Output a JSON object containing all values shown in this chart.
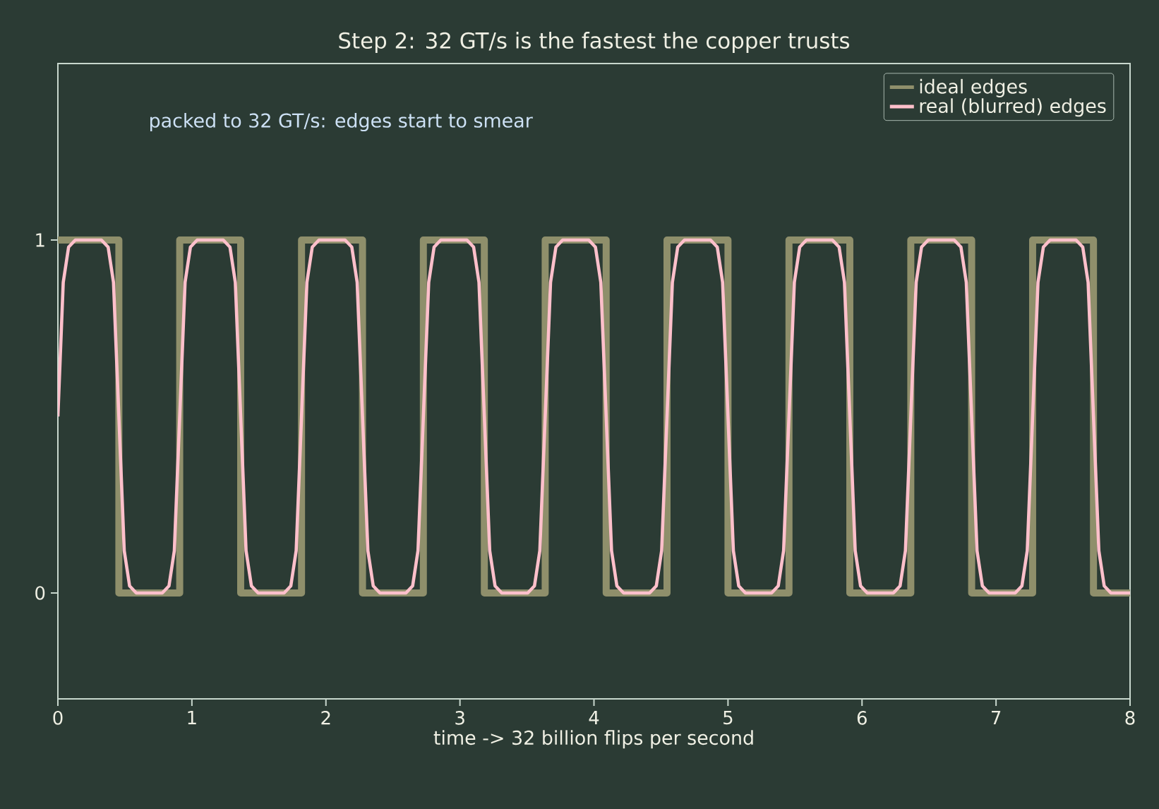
{
  "chart_data": {
    "type": "line",
    "title": "Step 2: 32 GT/s is the fastest the copper trusts",
    "xlabel": "time  ->  32 billion flips per second",
    "annotations": [
      "packed to 32 GT/s: edges start to smear"
    ],
    "xlim": [
      0,
      8
    ],
    "ylim": [
      -0.3,
      1.5
    ],
    "xticks": [
      0,
      1,
      2,
      3,
      4,
      5,
      6,
      7,
      8
    ],
    "yticks": [
      0,
      1
    ],
    "grid": false,
    "legend": "top right",
    "series": [
      {
        "name": "ideal edges",
        "type": "step",
        "color": "#8f8f6b",
        "x": [
          0,
          0.455,
          0.909,
          1.364,
          1.818,
          2.273,
          2.727,
          3.182,
          3.636,
          4.091,
          4.545,
          5.0,
          5.455,
          5.909,
          6.364,
          6.818,
          7.273,
          7.727,
          8
        ],
        "values": [
          1,
          0,
          1,
          0,
          1,
          0,
          1,
          0,
          1,
          0,
          1,
          0,
          1,
          0,
          1,
          0,
          1,
          0,
          0
        ]
      },
      {
        "name": "real (blurred) edges",
        "color": "#ffc0cb",
        "x": [
          0,
          0.04,
          0.08,
          0.13,
          0.325,
          0.375,
          0.415,
          0.455,
          0.495,
          0.535,
          0.585,
          0.779,
          0.829,
          0.869,
          0.909,
          0.949,
          0.989,
          1.039,
          1.234,
          1.284,
          1.324,
          1.364,
          1.404,
          1.444,
          1.494,
          1.688,
          1.738,
          1.778,
          1.818,
          1.858,
          1.898,
          1.948,
          2.143,
          2.193,
          2.233,
          2.273,
          2.313,
          2.353,
          2.403,
          2.597,
          2.647,
          2.687,
          2.727,
          2.767,
          2.807,
          2.857,
          3.052,
          3.102,
          3.142,
          3.182,
          3.222,
          3.262,
          3.312,
          3.506,
          3.556,
          3.596,
          3.636,
          3.676,
          3.716,
          3.766,
          3.961,
          4.011,
          4.051,
          4.091,
          4.131,
          4.171,
          4.221,
          4.415,
          4.465,
          4.505,
          4.545,
          4.585,
          4.625,
          4.675,
          4.87,
          4.92,
          4.96,
          5.0,
          5.04,
          5.08,
          5.13,
          5.325,
          5.375,
          5.415,
          5.455,
          5.495,
          5.535,
          5.585,
          5.779,
          5.829,
          5.869,
          5.909,
          5.949,
          5.989,
          6.039,
          6.234,
          6.284,
          6.324,
          6.364,
          6.404,
          6.444,
          6.494,
          6.688,
          6.738,
          6.778,
          6.818,
          6.858,
          6.898,
          6.948,
          7.143,
          7.193,
          7.233,
          7.273,
          7.313,
          7.353,
          7.403,
          7.597,
          7.647,
          7.687,
          7.727,
          7.767,
          7.807,
          7.857,
          8
        ],
        "values": [
          0.5,
          0.88,
          0.98,
          1,
          1,
          0.98,
          0.88,
          0.5,
          0.12,
          0.02,
          0,
          0,
          0.02,
          0.12,
          0.5,
          0.88,
          0.98,
          1,
          1,
          0.98,
          0.88,
          0.5,
          0.12,
          0.02,
          0,
          0,
          0.02,
          0.12,
          0.5,
          0.88,
          0.98,
          1,
          1,
          0.98,
          0.88,
          0.5,
          0.12,
          0.02,
          0,
          0,
          0.02,
          0.12,
          0.5,
          0.88,
          0.98,
          1,
          1,
          0.98,
          0.88,
          0.5,
          0.12,
          0.02,
          0,
          0,
          0.02,
          0.12,
          0.5,
          0.88,
          0.98,
          1,
          1,
          0.98,
          0.88,
          0.5,
          0.12,
          0.02,
          0,
          0,
          0.02,
          0.12,
          0.5,
          0.88,
          0.98,
          1,
          1,
          0.98,
          0.88,
          0.5,
          0.12,
          0.02,
          0,
          0,
          0.02,
          0.12,
          0.5,
          0.88,
          0.98,
          1,
          1,
          0.98,
          0.88,
          0.5,
          0.12,
          0.02,
          0,
          0,
          0.02,
          0.12,
          0.5,
          0.88,
          0.98,
          1,
          1,
          0.98,
          0.88,
          0.5,
          0.12,
          0.02,
          0,
          0,
          0.02,
          0.12,
          0.5,
          0.88,
          0.98,
          1,
          1,
          0.98,
          0.88,
          0.5,
          0.12,
          0.02,
          0,
          0
        ]
      }
    ]
  }
}
